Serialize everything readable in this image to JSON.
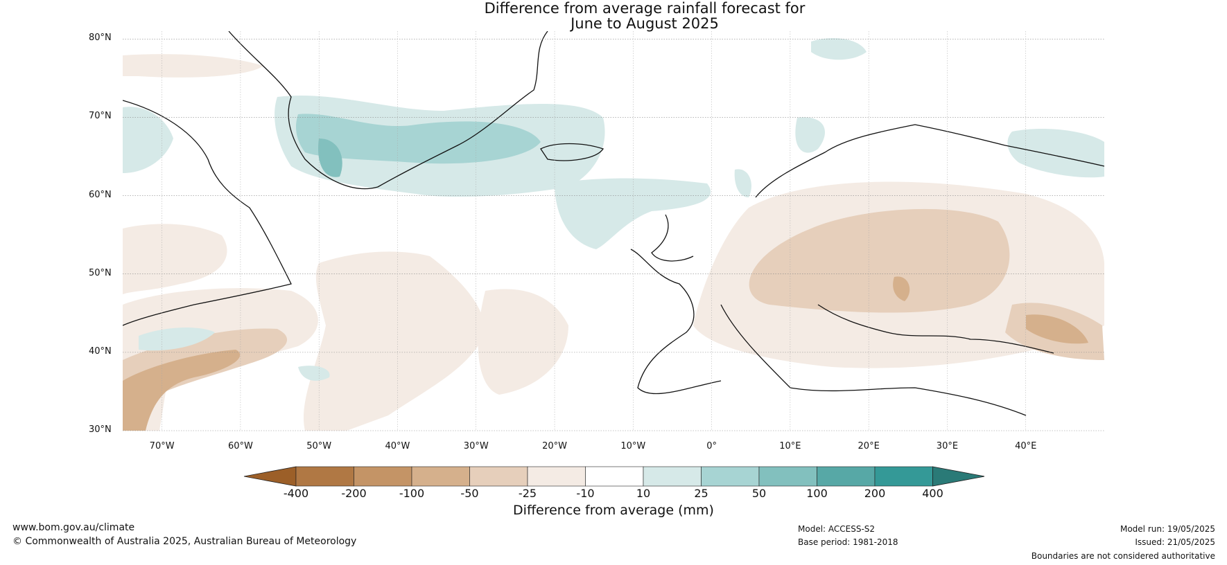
{
  "title": {
    "line1": "Difference from average rainfall forecast for",
    "line2": "June to August 2025"
  },
  "map": {
    "lat_labels": [
      "80°N",
      "70°N",
      "60°N",
      "50°N",
      "40°N",
      "30°N"
    ],
    "lon_labels": [
      "70°W",
      "60°W",
      "50°W",
      "40°W",
      "30°W",
      "20°W",
      "10°W",
      "0°",
      "10°E",
      "20°E",
      "30°E",
      "40°E"
    ],
    "lat_range": [
      30,
      81
    ],
    "lon_range": [
      -75,
      50
    ]
  },
  "colorbar": {
    "label": "Difference from average (mm)",
    "ticks": [
      "-400",
      "-200",
      "-100",
      "-50",
      "-25",
      "-10",
      "10",
      "25",
      "50",
      "100",
      "200",
      "400"
    ],
    "colors": [
      "#9c5f28",
      "#b07844",
      "#c49466",
      "#d5b08c",
      "#e6cfbb",
      "#f4ebe4",
      "#ffffff",
      "#d6e9e8",
      "#a7d4d3",
      "#82c0be",
      "#57a8a6",
      "#349997",
      "#2a7a77"
    ]
  },
  "footer": {
    "url": "www.bom.gov.au/climate",
    "copyright": "© Commonwealth of Australia 2025, Australian Bureau of Meteorology",
    "model": "Model: ACCESS-S2",
    "base_period": "Base period: 1981-2018",
    "model_run": "Model run: 19/05/2025",
    "issued": "Issued: 21/05/2025",
    "disclaimer": "Boundaries are not considered authoritative"
  }
}
